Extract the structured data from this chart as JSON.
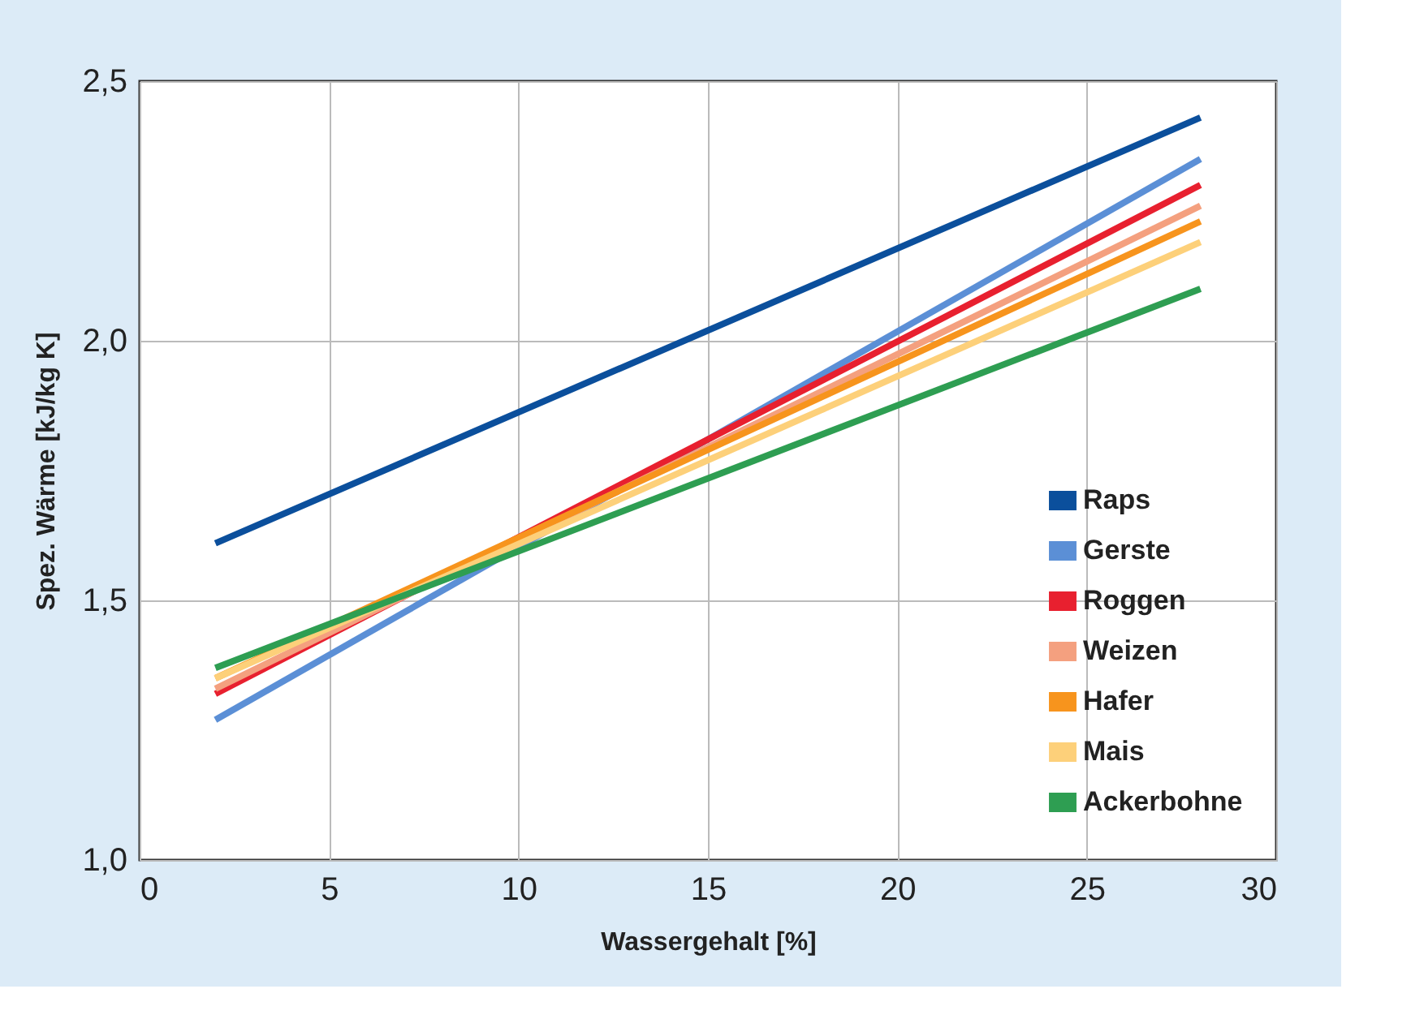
{
  "chart_data": {
    "type": "line",
    "xlabel": "Wassergehalt [%]",
    "ylabel": "Spez. Wärme [kJ/kg K]",
    "x": [
      2,
      28
    ],
    "series": [
      {
        "name": "Raps",
        "color": "#0b4f9c",
        "values": [
          1.61,
          2.43
        ]
      },
      {
        "name": "Gerste",
        "color": "#5b8fd6",
        "values": [
          1.27,
          2.35
        ]
      },
      {
        "name": "Roggen",
        "color": "#e8202f",
        "values": [
          1.32,
          2.3
        ]
      },
      {
        "name": "Weizen",
        "color": "#f4a07f",
        "values": [
          1.33,
          2.26
        ]
      },
      {
        "name": "Hafer",
        "color": "#f7941d",
        "values": [
          1.35,
          2.23
        ]
      },
      {
        "name": "Mais",
        "color": "#fdd07a",
        "values": [
          1.35,
          2.19
        ]
      },
      {
        "name": "Ackerbohne",
        "color": "#2e9e52",
        "values": [
          1.37,
          2.1
        ]
      }
    ],
    "xlim": [
      0,
      30
    ],
    "xticks": [
      0,
      5,
      10,
      15,
      20,
      25,
      30
    ],
    "ylim": [
      1.0,
      2.5
    ],
    "yticks": [
      {
        "value": 1.0,
        "label": "1,0"
      },
      {
        "value": 1.5,
        "label": "1,5"
      },
      {
        "value": 2.0,
        "label": "2,0"
      },
      {
        "value": 2.5,
        "label": "2,5"
      }
    ],
    "grid": true,
    "legend": "bottom right",
    "marker": "none",
    "line_style": "solid"
  }
}
